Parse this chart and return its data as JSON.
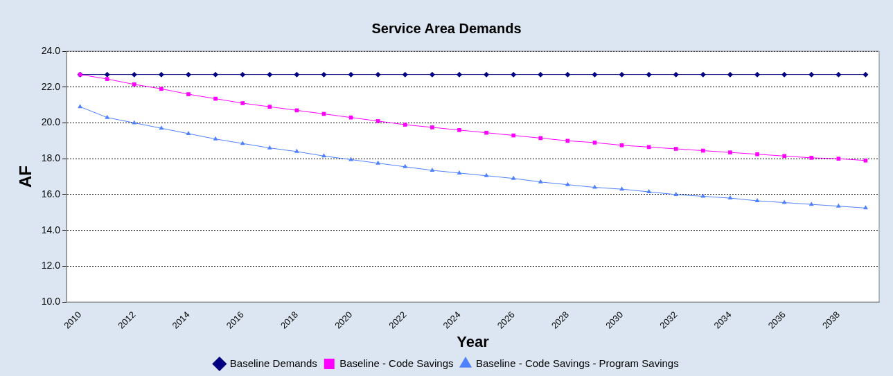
{
  "chart_data": {
    "type": "line",
    "title": "Service Area Demands",
    "xlabel": "Year",
    "ylabel": "AF",
    "categories": [
      "2010",
      null,
      "2012",
      null,
      "2014",
      null,
      "2016",
      null,
      "2018",
      null,
      "2020",
      null,
      "2022",
      null,
      "2024",
      null,
      "2026",
      null,
      "2028",
      null,
      "2030",
      null,
      "2032",
      null,
      "2034",
      null,
      "2036",
      null,
      "2038",
      null
    ],
    "series": [
      {
        "name": "Baseline Demands",
        "color": "#000080",
        "marker": "diamond",
        "values": [
          22.7,
          22.7,
          22.7,
          22.7,
          22.7,
          22.7,
          22.7,
          22.7,
          22.7,
          22.7,
          22.7,
          22.7,
          22.7,
          22.7,
          22.7,
          22.7,
          22.7,
          22.7,
          22.7,
          22.7,
          22.7,
          22.7,
          22.7,
          22.7,
          22.7,
          22.7,
          22.7,
          22.7,
          22.7,
          22.7
        ]
      },
      {
        "name": "Baseline - Code Savings",
        "color": "#ff00ff",
        "marker": "square",
        "values": [
          22.7,
          22.45,
          22.15,
          21.9,
          21.6,
          21.35,
          21.1,
          20.9,
          20.7,
          20.5,
          20.3,
          20.1,
          19.9,
          19.75,
          19.6,
          19.45,
          19.3,
          19.15,
          19.0,
          18.9,
          18.75,
          18.65,
          18.55,
          18.45,
          18.35,
          18.25,
          18.15,
          18.05,
          18.0,
          17.9
        ]
      },
      {
        "name": "Baseline - Code Savings - Program Savings",
        "color": "#4f81ff",
        "marker": "triangle",
        "values": [
          20.9,
          20.3,
          20.0,
          19.7,
          19.4,
          19.1,
          18.85,
          18.6,
          18.4,
          18.15,
          17.95,
          17.75,
          17.55,
          17.35,
          17.2,
          17.05,
          16.9,
          16.7,
          16.55,
          16.4,
          16.3,
          16.15,
          16.0,
          15.9,
          15.8,
          15.65,
          15.55,
          15.45,
          15.35,
          15.25
        ]
      }
    ],
    "ylim": [
      10,
      24
    ],
    "yticks": [
      {
        "value": 10,
        "label": "10.0"
      },
      {
        "value": 12,
        "label": "12.0"
      },
      {
        "value": 14,
        "label": "14.0"
      },
      {
        "value": 16,
        "label": "16.0"
      },
      {
        "value": 18,
        "label": "18.0"
      },
      {
        "value": 20,
        "label": "20.0"
      },
      {
        "value": 22,
        "label": "22.0"
      },
      {
        "value": 24,
        "label": "24.0"
      }
    ],
    "grid": "y",
    "legend": "bottom",
    "line_style": "solid"
  }
}
